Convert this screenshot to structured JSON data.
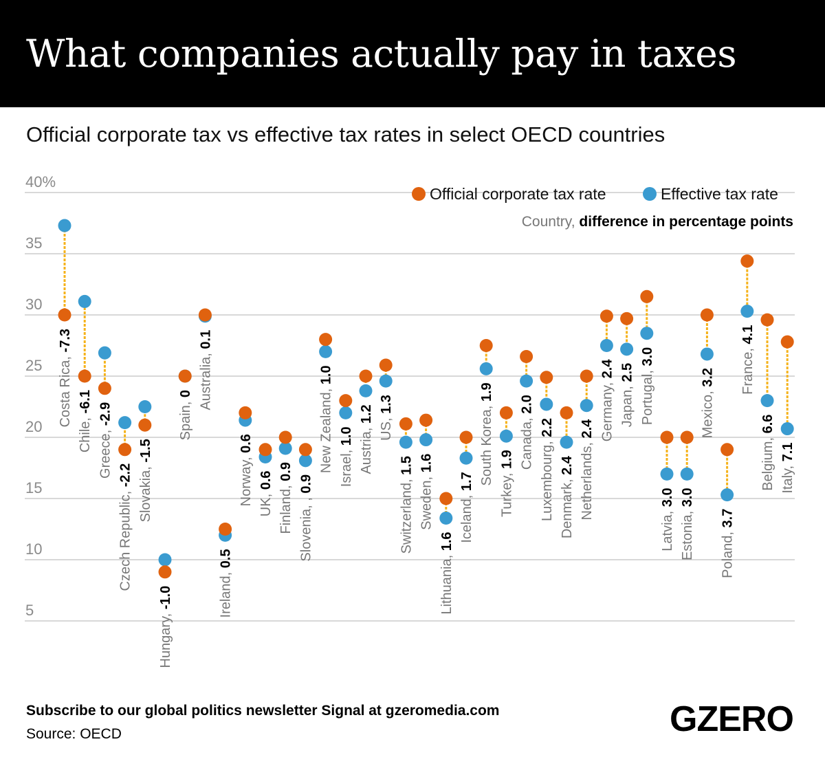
{
  "header": {
    "title": "What companies actually pay in taxes"
  },
  "subtitle": "Official corporate tax vs effective tax rates in select OECD countries",
  "footer": {
    "subscribe": "Subscribe to our global politics newsletter Signal at gzeromedia.com",
    "source": "Source: OECD",
    "logo": "GZERO"
  },
  "colors": {
    "official": "#e0620f",
    "effective": "#3a9bd0",
    "connector": "#f5b21a",
    "grid": "#cccccc",
    "axis_text": "#8a8a8a"
  },
  "chart_data": {
    "type": "dot-plot",
    "title": "Official corporate tax vs effective tax rates in select OECD countries",
    "ylim": [
      5,
      40
    ],
    "yticks": [
      "5",
      "10",
      "15",
      "20",
      "25",
      "30",
      "35",
      "40%"
    ],
    "grid": true,
    "legend_position": "top-right",
    "legend": [
      "Official corporate tax rate",
      "Effective tax rate"
    ],
    "label_note": {
      "prefix": "Country, ",
      "bold": "difference in percentage points"
    },
    "series_names": [
      "Official corporate tax rate",
      "Effective tax rate"
    ],
    "points": [
      {
        "country": "Costa Rica, ",
        "diff": "-7.3",
        "official": 30,
        "effective": 37.3
      },
      {
        "country": "Chile, ",
        "diff": "-6.1",
        "official": 25,
        "effective": 31.1
      },
      {
        "country": "Greece, ",
        "diff": "-2.9",
        "official": 24,
        "effective": 26.9
      },
      {
        "country": "Czech Republic, ",
        "diff": "-2.2",
        "official": 19,
        "effective": 21.2
      },
      {
        "country": "Slovakia, ",
        "diff": "-1.5",
        "official": 21,
        "effective": 22.5
      },
      {
        "country": "Hungary, ",
        "diff": "-1.0",
        "official": 9,
        "effective": 10
      },
      {
        "country": "Spain, ",
        "diff": "0",
        "official": 25,
        "effective": 25
      },
      {
        "country": "Australia, ",
        "diff": "0.1",
        "official": 30,
        "effective": 29.9
      },
      {
        "country": "Ireland, ",
        "diff": "0.5",
        "official": 12.5,
        "effective": 12
      },
      {
        "country": "Norway, ",
        "diff": "0.6",
        "official": 22,
        "effective": 21.4
      },
      {
        "country": "UK, ",
        "diff": "0.6",
        "official": 19,
        "effective": 18.4
      },
      {
        "country": "Finland, ",
        "diff": "0.9",
        "official": 20,
        "effective": 19.1
      },
      {
        "country": "Slovenia, , ",
        "diff": "0.9",
        "official": 19,
        "effective": 18.1
      },
      {
        "country": "New Zealand, ",
        "diff": "1.0",
        "official": 28,
        "effective": 27
      },
      {
        "country": "Israel, ",
        "diff": "1.0",
        "official": 23,
        "effective": 22
      },
      {
        "country": "Austria, ",
        "diff": "1.2",
        "official": 25,
        "effective": 23.8
      },
      {
        "country": "US, ",
        "diff": "1.3",
        "official": 25.9,
        "effective": 24.6
      },
      {
        "country": "Switzerland, ",
        "diff": "1.5",
        "official": 21.1,
        "effective": 19.6
      },
      {
        "country": "Sweden, ",
        "diff": "1.6",
        "official": 21.4,
        "effective": 19.8
      },
      {
        "country": "Lithuania, ",
        "diff": "1.6",
        "official": 15,
        "effective": 13.4
      },
      {
        "country": "Iceland, ",
        "diff": "1.7",
        "official": 20,
        "effective": 18.3
      },
      {
        "country": "South Korea, ",
        "diff": "1.9",
        "official": 27.5,
        "effective": 25.6
      },
      {
        "country": "Turkey, ",
        "diff": "1.9",
        "official": 22,
        "effective": 20.1
      },
      {
        "country": "Canada, ",
        "diff": "2.0",
        "official": 26.6,
        "effective": 24.6
      },
      {
        "country": "Luxembourg, ",
        "diff": "2.2",
        "official": 24.9,
        "effective": 22.7
      },
      {
        "country": "Denmark, ",
        "diff": "2.4",
        "official": 22,
        "effective": 19.6
      },
      {
        "country": "Netherlands, ",
        "diff": "2.4",
        "official": 25,
        "effective": 22.6
      },
      {
        "country": "Germany, ",
        "diff": "2.4",
        "official": 29.9,
        "effective": 27.5
      },
      {
        "country": "Japan, ",
        "diff": "2.5",
        "official": 29.7,
        "effective": 27.2
      },
      {
        "country": "Portugal, ",
        "diff": "3.0",
        "official": 31.5,
        "effective": 28.5
      },
      {
        "country": "Latvia, ",
        "diff": "3.0",
        "official": 20,
        "effective": 17
      },
      {
        "country": "Estonia, ",
        "diff": "3.0",
        "official": 20,
        "effective": 17
      },
      {
        "country": "Mexico, ",
        "diff": "3.2",
        "official": 30,
        "effective": 26.8
      },
      {
        "country": "Poland, ",
        "diff": "3.7",
        "official": 19,
        "effective": 15.3
      },
      {
        "country": "France, ",
        "diff": "4.1",
        "official": 34.4,
        "effective": 30.3
      },
      {
        "country": "Belgium, ",
        "diff": "6.6",
        "official": 29.6,
        "effective": 23
      },
      {
        "country": "Italy, ",
        "diff": "7.1",
        "official": 27.8,
        "effective": 20.7
      }
    ]
  }
}
